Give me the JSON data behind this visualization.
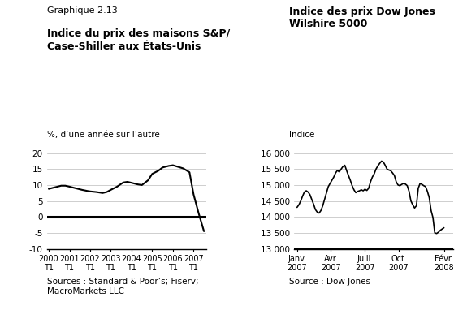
{
  "left_title_small": "Graphique 2.13",
  "left_title_bold": "Indice du prix des maisons S&P/\nCase-Shiller aux États-Unis",
  "left_ylabel": "%, d’une année sur l’autre",
  "left_ylim": [
    -10,
    20
  ],
  "left_yticks": [
    -10,
    -5,
    0,
    5,
    10,
    15,
    20
  ],
  "left_ytick_labels": [
    "-10",
    "-5",
    "0",
    "5",
    "10",
    "15",
    "20"
  ],
  "left_xtick_labels": [
    "2000\nT1",
    "2001\nT1",
    "2002\nT1",
    "2003\nT1",
    "2004\nT1",
    "2005\nT1",
    "2006\nT1",
    "2007\nT1"
  ],
  "left_source": "Sources : Standard & Poor’s; Fiserv;\nMacroMarkets LLC",
  "left_x": [
    0,
    0.3,
    0.6,
    0.8,
    1.0,
    1.3,
    1.6,
    1.9,
    2.0,
    2.3,
    2.6,
    2.8,
    3.0,
    3.3,
    3.6,
    3.8,
    4.0,
    4.3,
    4.5,
    4.8,
    5.0,
    5.3,
    5.5,
    5.8,
    6.0,
    6.2,
    6.5,
    6.8,
    7.0,
    7.25,
    7.5
  ],
  "left_y": [
    8.8,
    9.3,
    9.8,
    9.8,
    9.5,
    9.0,
    8.5,
    8.1,
    8.0,
    7.8,
    7.5,
    7.8,
    8.5,
    9.5,
    10.8,
    11.0,
    10.7,
    10.2,
    10.0,
    11.5,
    13.5,
    14.5,
    15.5,
    16.0,
    16.2,
    15.8,
    15.2,
    14.0,
    7.0,
    1.0,
    -4.5
  ],
  "right_title_bold": "Indice des prix Dow Jones\nWilshire 5000",
  "right_ylabel": "Indice",
  "right_ylim": [
    13000,
    16000
  ],
  "right_yticks": [
    13000,
    13500,
    14000,
    14500,
    15000,
    15500,
    16000
  ],
  "right_ytick_labels": [
    "13 000",
    "13 500",
    "14 000",
    "14 500",
    "15 000",
    "15 500",
    "16 000"
  ],
  "right_xtick_labels": [
    "Janv.\n2007",
    "Avr.\n2007",
    "Juill.\n2007",
    "Oct.\n2007",
    "Févr.\n2008"
  ],
  "right_source": "Source : Dow Jones",
  "right_y": [
    14300,
    14380,
    14500,
    14650,
    14780,
    14820,
    14780,
    14700,
    14550,
    14400,
    14230,
    14150,
    14120,
    14200,
    14350,
    14550,
    14750,
    14950,
    15050,
    15150,
    15250,
    15380,
    15460,
    15410,
    15500,
    15580,
    15620,
    15450,
    15300,
    15150,
    14980,
    14850,
    14760,
    14800,
    14820,
    14850,
    14820,
    14870,
    14830,
    14900,
    15100,
    15250,
    15350,
    15500,
    15600,
    15680,
    15750,
    15720,
    15620,
    15500,
    15470,
    15450,
    15380,
    15300,
    15100,
    15000,
    14980,
    15020,
    15050,
    15030,
    14980,
    14800,
    14500,
    14380,
    14280,
    14350,
    14900,
    15050,
    15020,
    14980,
    14950,
    14800,
    14600,
    14200,
    13980,
    13500,
    13480,
    13520,
    13580,
    13620,
    13660
  ],
  "background_color": "#ffffff",
  "line_color": "#000000"
}
